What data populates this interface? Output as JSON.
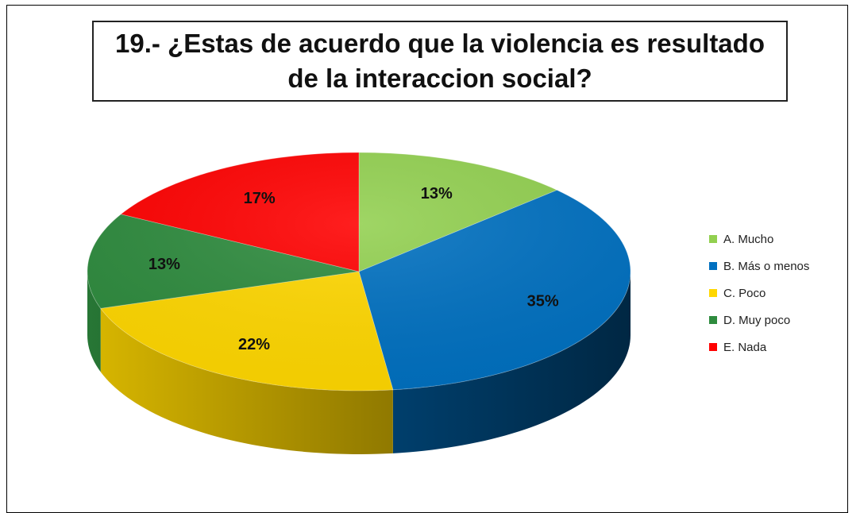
{
  "chart_data": {
    "type": "pie",
    "title_line1": "19.- ¿Estas de acuerdo que la violencia es resultado",
    "title_line2": "de la interaccion social?",
    "categories": [
      "A. Mucho",
      "B. Más o menos",
      "C. Poco",
      "D. Muy poco",
      "E. Nada"
    ],
    "values": [
      13,
      35,
      22,
      13,
      17
    ],
    "labels": [
      "13%",
      "35%",
      "22%",
      "13%",
      "17%"
    ],
    "colors": [
      "#92d050",
      "#0070c0",
      "#ffd700",
      "#2e8b3e",
      "#ff0000"
    ],
    "legend_position": "right",
    "style": "3d-pie"
  }
}
